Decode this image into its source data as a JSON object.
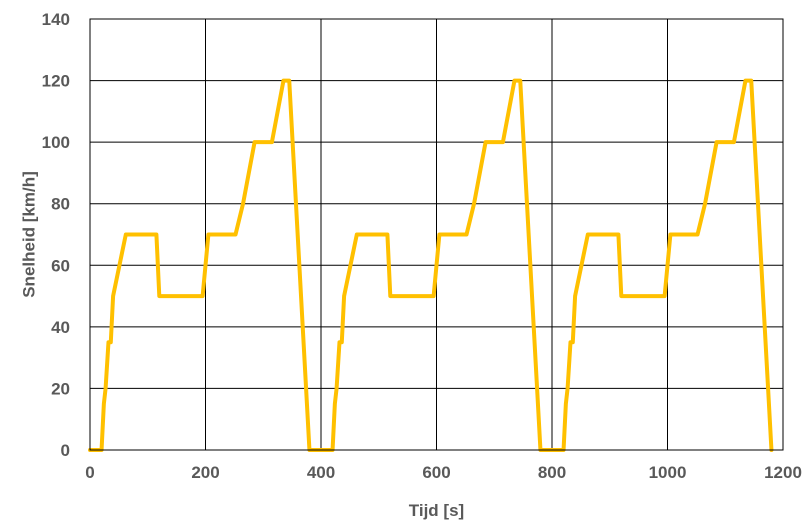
{
  "chart_data": {
    "type": "line",
    "title": "",
    "xlabel": "Tijd [s]",
    "ylabel": "Snelheid [km/h]",
    "xlim": [
      0,
      1200
    ],
    "ylim": [
      0,
      140
    ],
    "xticks": [
      0,
      200,
      400,
      600,
      800,
      1000,
      1200
    ],
    "yticks": [
      0,
      20,
      40,
      60,
      80,
      100,
      120,
      140
    ],
    "grid": true,
    "legend": "none",
    "colors": {
      "series": "#FFC000",
      "grid": "#000000",
      "text": "#595959"
    },
    "series": [
      {
        "x": [
          0,
          20,
          24,
          27,
          32,
          36,
          40,
          62,
          115,
          120,
          195,
          200,
          205,
          252,
          265,
          285,
          315,
          335,
          345,
          380,
          420,
          424,
          427,
          432,
          436,
          440,
          462,
          515,
          520,
          595,
          600,
          605,
          652,
          665,
          685,
          715,
          735,
          745,
          780,
          820,
          824,
          827,
          832,
          836,
          840,
          862,
          915,
          920,
          995,
          1000,
          1005,
          1052,
          1065,
          1085,
          1115,
          1135,
          1145,
          1180
        ],
        "y": [
          0,
          0,
          15,
          20,
          35,
          35,
          50,
          70,
          70,
          50,
          50,
          60,
          70,
          70,
          80,
          100,
          100,
          120,
          120,
          0,
          0,
          15,
          20,
          35,
          35,
          50,
          70,
          70,
          50,
          50,
          60,
          70,
          70,
          80,
          100,
          100,
          120,
          120,
          0,
          0,
          15,
          20,
          35,
          35,
          50,
          70,
          70,
          50,
          50,
          60,
          70,
          70,
          80,
          100,
          100,
          120,
          120,
          0
        ]
      }
    ]
  }
}
